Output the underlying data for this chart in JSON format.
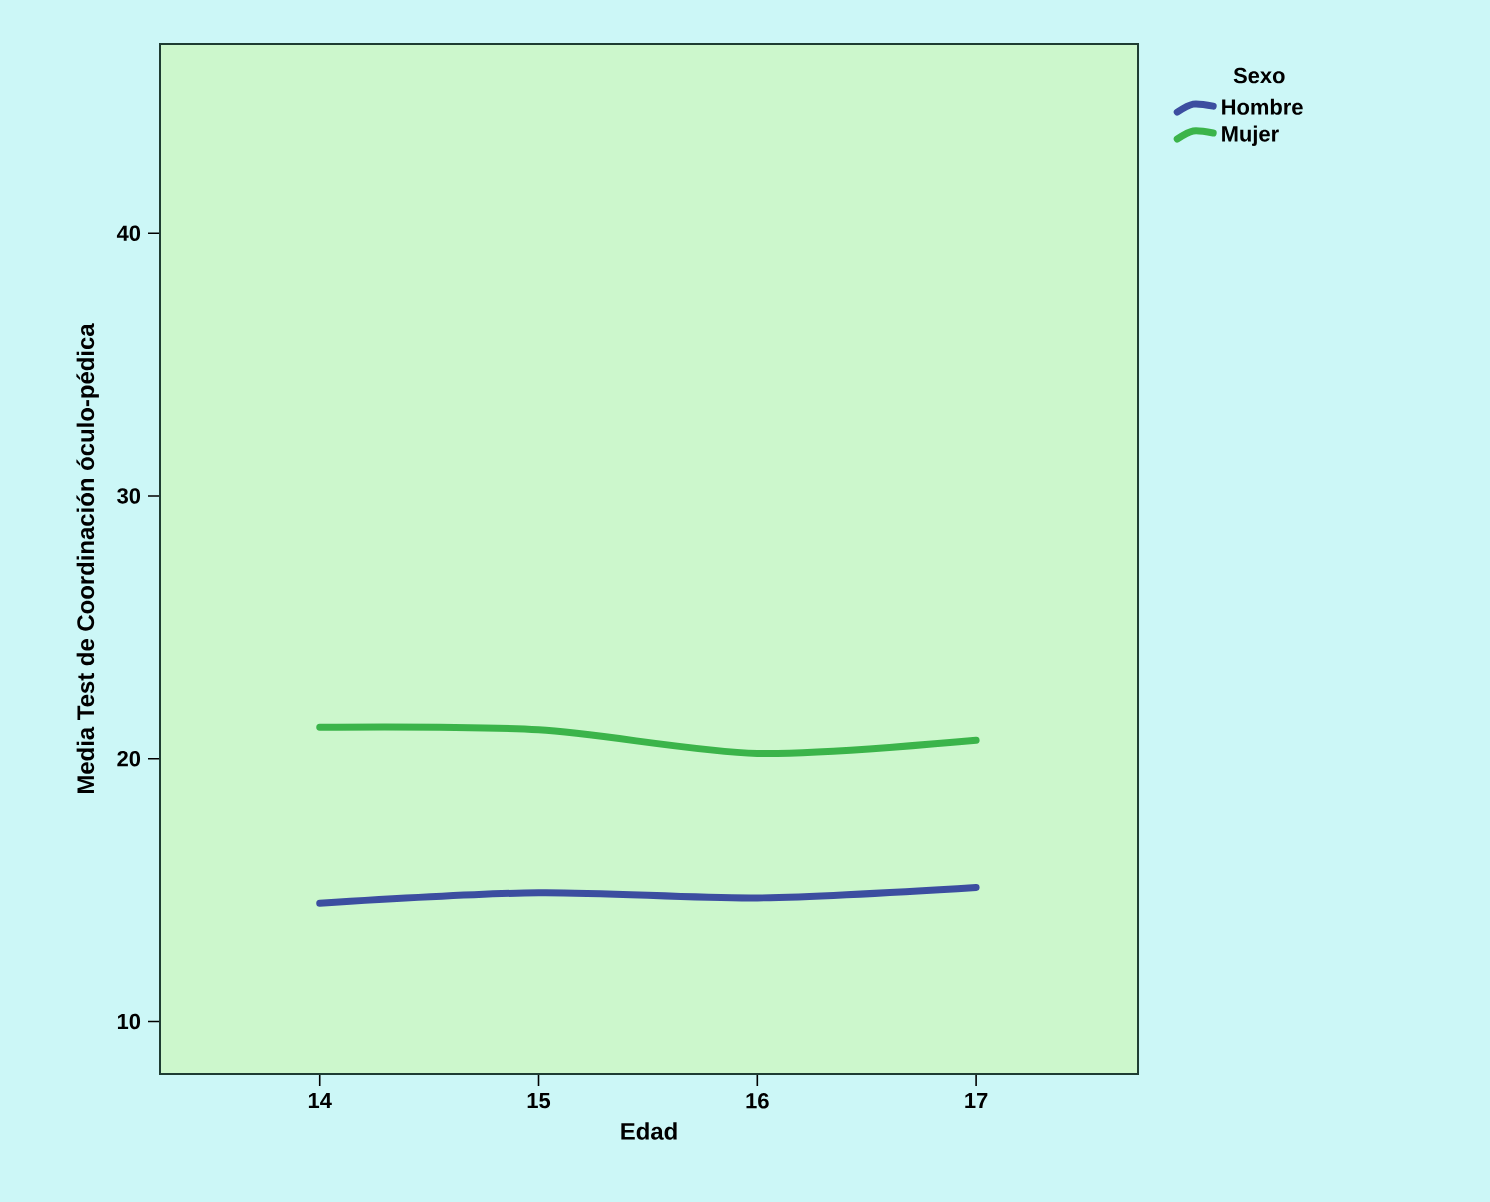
{
  "chart_data": {
    "type": "line",
    "xlabel": "Edad",
    "ylabel": "Media Test de Coordinación óculo-pédica",
    "legend_title": "Sexo",
    "legend": "top right",
    "x": [
      14,
      15,
      16,
      17
    ],
    "series": [
      {
        "name": "Hombre",
        "color": "#3c4ea0",
        "values": [
          14.5,
          14.9,
          14.7,
          15.1
        ]
      },
      {
        "name": "Mujer",
        "color": "#3bb44a",
        "values": [
          21.2,
          21.1,
          20.2,
          20.7
        ]
      }
    ],
    "xlim": [
      13.27,
      17.74
    ],
    "ylim": [
      8,
      47.2
    ],
    "xticks": [
      14,
      15,
      16,
      17
    ],
    "yticks": [
      10,
      20,
      30,
      40
    ],
    "grid": false
  }
}
